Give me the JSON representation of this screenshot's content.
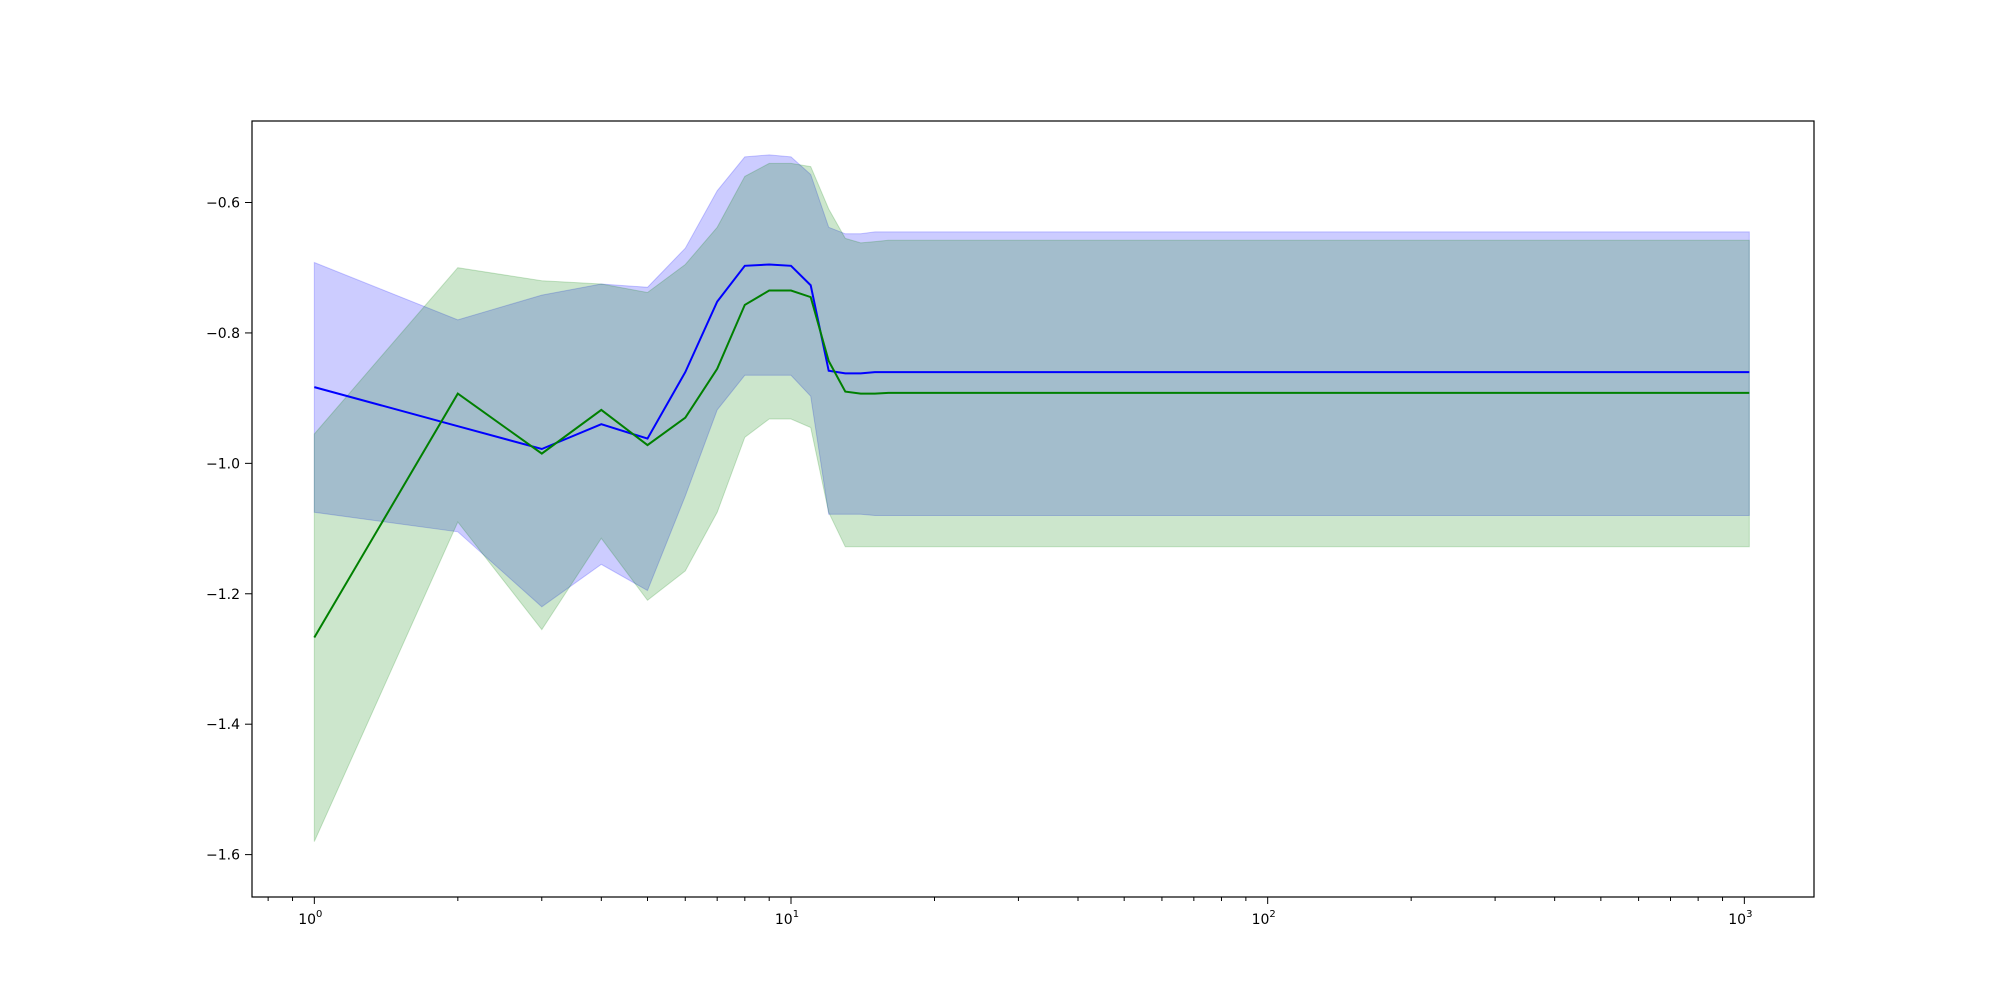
{
  "chart_data": {
    "type": "line",
    "title": "",
    "xlabel": "",
    "ylabel": "",
    "xscale": "log",
    "xlim": [
      0.74,
      1400
    ],
    "ylim": [
      -1.665,
      -0.475
    ],
    "grid": false,
    "legend": "none",
    "x_ticks": [
      {
        "base": "10",
        "exp": "0",
        "value": 1
      },
      {
        "base": "10",
        "exp": "1",
        "value": 10
      },
      {
        "base": "10",
        "exp": "2",
        "value": 100
      },
      {
        "base": "10",
        "exp": "3",
        "value": 1000
      }
    ],
    "y_ticks": [
      {
        "label": "−0.6",
        "value": -0.6
      },
      {
        "label": "−0.8",
        "value": -0.8
      },
      {
        "label": "−1.0",
        "value": -1.0
      },
      {
        "label": "−1.2",
        "value": -1.2
      },
      {
        "label": "−1.4",
        "value": -1.4
      },
      {
        "label": "−1.6",
        "value": -1.6
      }
    ],
    "series": [
      {
        "color": "#0000ff",
        "band_color": "#0000ff",
        "band_opacity": 0.2,
        "x": [
          1,
          2,
          3,
          4,
          5,
          6,
          7,
          8,
          9,
          10,
          11,
          12,
          13,
          14,
          15,
          16,
          1024
        ],
        "y": [
          -0.883,
          -0.943,
          -0.978,
          -0.94,
          -0.962,
          -0.86,
          -0.752,
          -0.697,
          -0.695,
          -0.697,
          -0.727,
          -0.858,
          -0.862,
          -0.862,
          -0.86,
          -0.86,
          -0.86
        ],
        "lower": [
          -1.075,
          -1.105,
          -1.22,
          -1.155,
          -1.195,
          -1.05,
          -0.918,
          -0.865,
          -0.865,
          -0.865,
          -0.897,
          -1.078,
          -1.078,
          -1.078,
          -1.08,
          -1.08,
          -1.08
        ],
        "upper": [
          -0.692,
          -0.78,
          -0.742,
          -0.725,
          -0.73,
          -0.67,
          -0.582,
          -0.53,
          -0.527,
          -0.53,
          -0.557,
          -0.638,
          -0.648,
          -0.648,
          -0.645,
          -0.645,
          -0.645
        ]
      },
      {
        "color": "#008000",
        "band_color": "#008000",
        "band_opacity": 0.2,
        "x": [
          1,
          2,
          3,
          4,
          5,
          6,
          7,
          8,
          9,
          10,
          11,
          12,
          13,
          14,
          15,
          16,
          1024
        ],
        "y": [
          -1.267,
          -0.893,
          -0.985,
          -0.918,
          -0.972,
          -0.93,
          -0.855,
          -0.757,
          -0.735,
          -0.735,
          -0.745,
          -0.843,
          -0.89,
          -0.893,
          -0.893,
          -0.892,
          -0.892
        ],
        "lower": [
          -1.58,
          -1.09,
          -1.255,
          -1.115,
          -1.21,
          -1.165,
          -1.075,
          -0.96,
          -0.932,
          -0.932,
          -0.945,
          -1.075,
          -1.128,
          -1.128,
          -1.128,
          -1.128,
          -1.128
        ],
        "upper": [
          -0.955,
          -0.7,
          -0.72,
          -0.725,
          -0.738,
          -0.695,
          -0.638,
          -0.56,
          -0.54,
          -0.54,
          -0.545,
          -0.61,
          -0.655,
          -0.662,
          -0.66,
          -0.658,
          -0.658
        ]
      }
    ]
  }
}
